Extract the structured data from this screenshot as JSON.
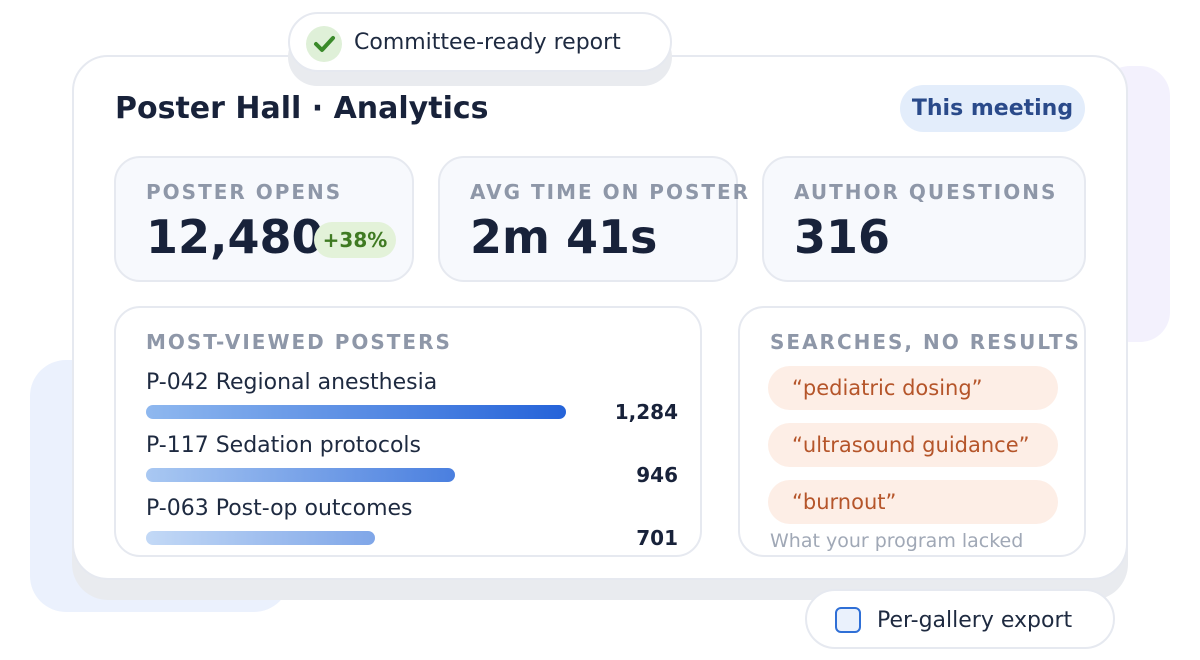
{
  "badge_top": "Committee-ready report",
  "header": {
    "title": "Poster Hall · Analytics",
    "scope": "This meeting"
  },
  "kpis": [
    {
      "label": "POSTER OPENS",
      "value": "12,480",
      "delta": "+38%"
    },
    {
      "label": "AVG TIME ON POSTER",
      "value": "2m 41s"
    },
    {
      "label": "AUTHOR QUESTIONS",
      "value": "316"
    }
  ],
  "posters": {
    "title": "MOST-VIEWED POSTERS",
    "items": [
      {
        "label": "P-042 Regional anesthesia",
        "value": 1284,
        "value_label": "1,284"
      },
      {
        "label": "P-117 Sedation protocols",
        "value": 946,
        "value_label": "946"
      },
      {
        "label": "P-063 Post-op outcomes",
        "value": 701,
        "value_label": "701"
      }
    ]
  },
  "searches": {
    "title": "SEARCHES, NO RESULTS",
    "items": [
      "“pediatric dosing”",
      "“ultrasound guidance”",
      "“burnout”"
    ],
    "footer": "What your program lacked"
  },
  "badge_bottom": "Per-gallery export"
}
